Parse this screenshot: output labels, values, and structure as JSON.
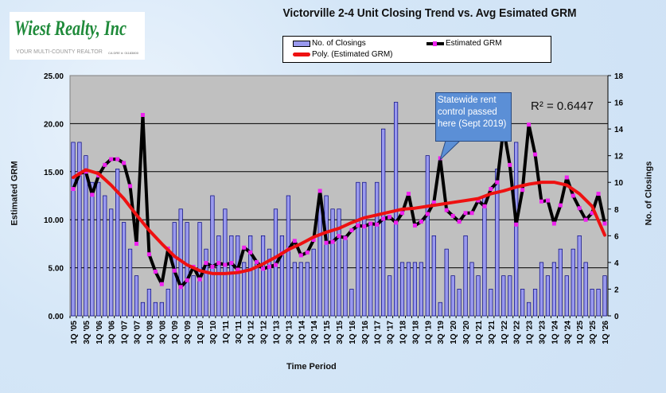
{
  "logo": {
    "brand": "Wiest Realty, Inc",
    "tagline": "YOUR MULTI-COUNTY REALTOR",
    "license": "CA DRE #: 01183800"
  },
  "colors": {
    "bars": "#9999ee",
    "grm_line": "#000000",
    "grm_marker": "#ee22ee",
    "trend": "#ee1111",
    "plot_bg": "#c0c0c0",
    "callout": "#5b8fd6"
  },
  "chart_data": {
    "type": "bar+line",
    "title": "Victorville 2-4 Unit Closing Trend vs. Avg Esimated GRM",
    "xlabel": "Time Period",
    "ylabel": "Estimated GRM",
    "y2label": "No. of Closings",
    "ylim": [
      0,
      25
    ],
    "y2lim": [
      0,
      18
    ],
    "y_ticks": [
      "0.00",
      "5.00",
      "10.00",
      "15.00",
      "20.00",
      "25.00"
    ],
    "y2_ticks": [
      "0",
      "2",
      "4",
      "6",
      "8",
      "10",
      "12",
      "14",
      "16",
      "18"
    ],
    "x_tick_labels": [
      "1Q '05",
      "3Q '05",
      "1Q '06",
      "3Q '06",
      "1Q '07",
      "3Q '07",
      "1Q '08",
      "3Q '08",
      "1Q '09",
      "3Q '09",
      "1Q '10",
      "3Q '10",
      "1Q '11",
      "3Q '11",
      "1Q '12",
      "3Q '12",
      "1Q '13",
      "3Q '13",
      "1Q '14",
      "3Q '14",
      "1Q '15",
      "3Q '15",
      "1Q '16",
      "3Q '16",
      "1Q '17",
      "3Q '17",
      "1Q '18",
      "3Q '18",
      "1Q '19",
      "3Q '19",
      "1Q '20",
      "3Q '20",
      "1Q '21",
      "3Q '21",
      "1Q '22",
      "3Q '22",
      "1Q '23",
      "3Q '23",
      "1Q '24",
      "3Q '24",
      "1Q '25",
      "3Q '25",
      "1Q '26"
    ],
    "grid": "horizontal",
    "legend": {
      "position": "top",
      "entries": [
        "No. of Closings",
        "Estimated GRM",
        "Poly. (Estimated GRM)"
      ]
    },
    "series": [
      {
        "name": "No. of Closings",
        "type": "bar",
        "axis": "right",
        "values": [
          13,
          13,
          12,
          10,
          10,
          9,
          8,
          11,
          7,
          5,
          3,
          1,
          2,
          1,
          1,
          2,
          7,
          8,
          7,
          3,
          7,
          5,
          9,
          6,
          8,
          6,
          6,
          4,
          6,
          4,
          6,
          5,
          8,
          6,
          9,
          4,
          4,
          4,
          5,
          9,
          9,
          8,
          8,
          6,
          2,
          10,
          10,
          7,
          10,
          14,
          3,
          16,
          4,
          4,
          4,
          4,
          12,
          6,
          1,
          5,
          3,
          2,
          6,
          4,
          3,
          9,
          2,
          11,
          3,
          3,
          13,
          2,
          1,
          2,
          4,
          3,
          4,
          5,
          3,
          5,
          6,
          4,
          2,
          2,
          3
        ]
      },
      {
        "name": "Estimated GRM",
        "type": "line",
        "axis": "left",
        "values": [
          13.2,
          14.8,
          15.0,
          12.6,
          14.6,
          15.7,
          16.3,
          16.3,
          15.9,
          13.5,
          7.5,
          20.9,
          6.4,
          4.6,
          3.3,
          7.0,
          4.7,
          3.0,
          3.7,
          5.1,
          3.8,
          5.5,
          5.1,
          5.5,
          5.3,
          5.5,
          4.8,
          7.1,
          6.6,
          5.6,
          4.9,
          5.1,
          5.3,
          6.5,
          6.9,
          7.8,
          6.3,
          6.6,
          7.9,
          13.0,
          7.6,
          7.7,
          8.3,
          8.1,
          8.9,
          9.4,
          9.3,
          9.6,
          9.5,
          10.1,
          10.3,
          9.7,
          10.7,
          12.7,
          9.4,
          9.8,
          10.6,
          11.8,
          16.4,
          11.0,
          10.4,
          9.8,
          10.7,
          10.7,
          12.0,
          11.4,
          13.2,
          13.9,
          19.5,
          15.7,
          9.5,
          13.1,
          19.9,
          16.8,
          11.9,
          12.0,
          9.6,
          11.5,
          14.4,
          12.5,
          11.2,
          10.0,
          10.7,
          12.7,
          9.6
        ]
      },
      {
        "name": "Poly. (Estimated GRM)",
        "type": "trendline",
        "axis": "left",
        "sample_every": 2,
        "values": [
          14.4,
          15.2,
          14.8,
          13.6,
          12.2,
          10.5,
          8.9,
          7.5,
          6.2,
          5.3,
          4.7,
          4.4,
          4.4,
          4.5,
          4.8,
          5.4,
          6.1,
          6.9,
          7.5,
          8.2,
          8.7,
          9.1,
          9.7,
          10.2,
          10.5,
          10.8,
          11.1,
          11.2,
          11.4,
          11.6,
          11.8,
          12.0,
          12.2,
          12.7,
          13.0,
          13.4,
          13.7,
          13.9,
          13.9,
          13.6,
          12.7,
          11.4,
          8.4
        ]
      }
    ],
    "annotations": {
      "r_squared": "R² = 0.6447",
      "callout": "Statewide rent control passed here (Sept 2019)"
    }
  }
}
